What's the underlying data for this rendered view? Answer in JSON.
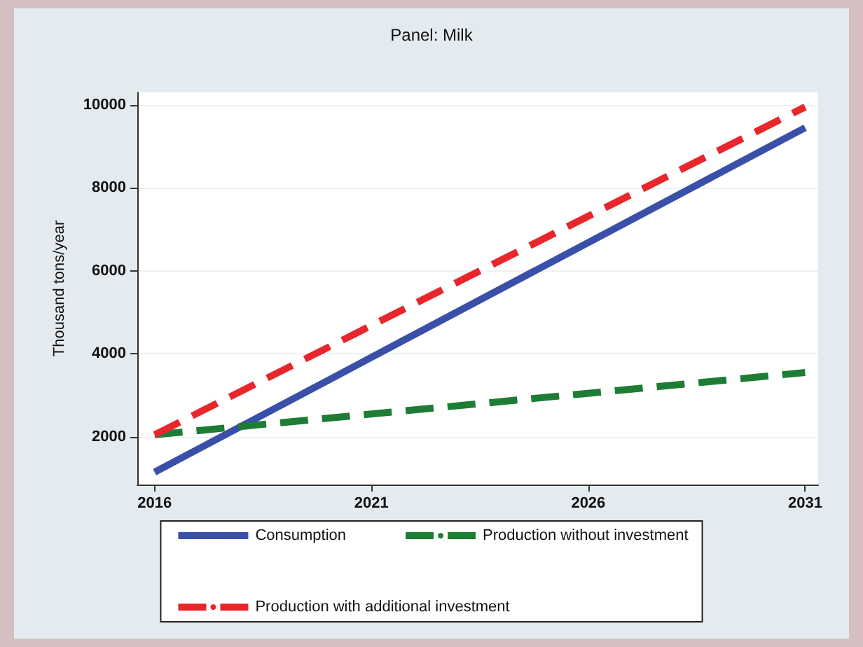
{
  "chart_data": {
    "type": "line",
    "title": "Panel: Milk",
    "ylabel": "Thousand tons/year",
    "x": [
      2016,
      2031
    ],
    "series": [
      {
        "name": "Consumption",
        "color": "#3a4fa8",
        "values": [
          1150,
          9450
        ],
        "line_style": "solid"
      },
      {
        "name": "Production without investment",
        "color": "#1e7d34",
        "values": [
          2050,
          3550
        ],
        "line_style": "dashed"
      },
      {
        "name": "Production with additional investment",
        "color": "#e8262b",
        "values": [
          2050,
          9950
        ],
        "line_style": "dashed"
      }
    ],
    "xlim": [
      2015.6,
      2031.3
    ],
    "xticks": [
      2016,
      2021,
      2026,
      2031
    ],
    "ylim": [
      850,
      10300
    ],
    "yticks": [
      2000,
      4000,
      6000,
      8000,
      10000
    ],
    "grid": "y",
    "legend": "bottom",
    "marker": "none"
  }
}
